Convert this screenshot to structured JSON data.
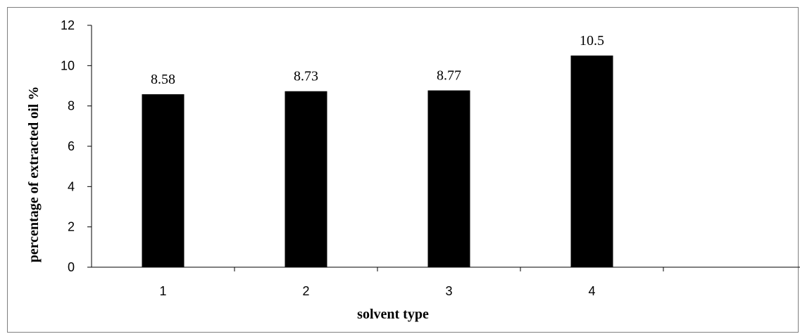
{
  "chart_data": {
    "type": "bar",
    "categories": [
      "1",
      "2",
      "3",
      "4"
    ],
    "values": [
      8.58,
      8.73,
      8.77,
      10.5
    ],
    "data_labels": [
      "8.58",
      "8.73",
      "8.77",
      "10.5"
    ],
    "title": "",
    "xlabel": "solvent type",
    "ylabel": "percentage of extracted oil %",
    "ylim": [
      0,
      12
    ],
    "yticks": [
      0,
      2,
      4,
      6,
      8,
      10,
      12
    ],
    "grid": false,
    "legend": "none",
    "bar_color": "#000000",
    "axis_color": "#000000"
  }
}
